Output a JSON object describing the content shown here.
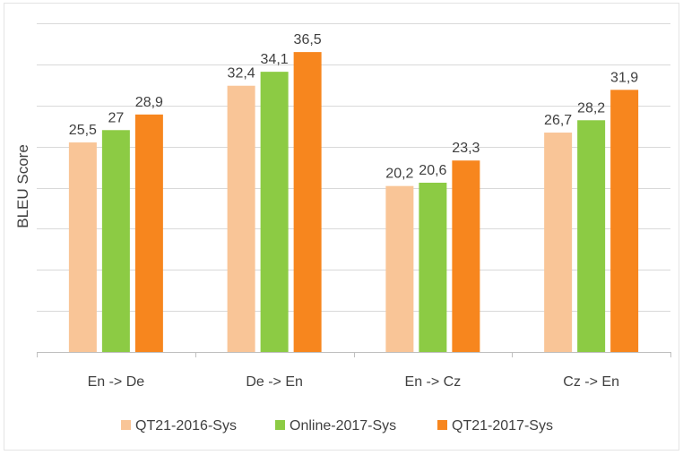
{
  "chart_data": {
    "type": "bar",
    "ylabel": "BLEU Score",
    "xlabel": "",
    "ylim": [
      0,
      40
    ],
    "grid": true,
    "legend_position": "bottom",
    "categories": [
      "En -> De",
      "De -> En",
      "En -> Cz",
      "Cz -> En"
    ],
    "series": [
      {
        "name": "QT21-2016-Sys",
        "color": "#F9C597",
        "values": [
          25.5,
          32.4,
          20.2,
          26.7
        ],
        "labels": [
          "25,5",
          "32,4",
          "20,2",
          "26,7"
        ]
      },
      {
        "name": "Online-2017-Sys",
        "color": "#8CCB44",
        "values": [
          27,
          34.1,
          20.6,
          28.2
        ],
        "labels": [
          "27",
          "34,1",
          "20,6",
          "28,2"
        ]
      },
      {
        "name": "QT21-2017-Sys",
        "color": "#F7861E",
        "values": [
          28.9,
          36.5,
          23.3,
          31.9
        ],
        "labels": [
          "28,9",
          "36,5",
          "23,3",
          "31,9"
        ]
      }
    ]
  }
}
